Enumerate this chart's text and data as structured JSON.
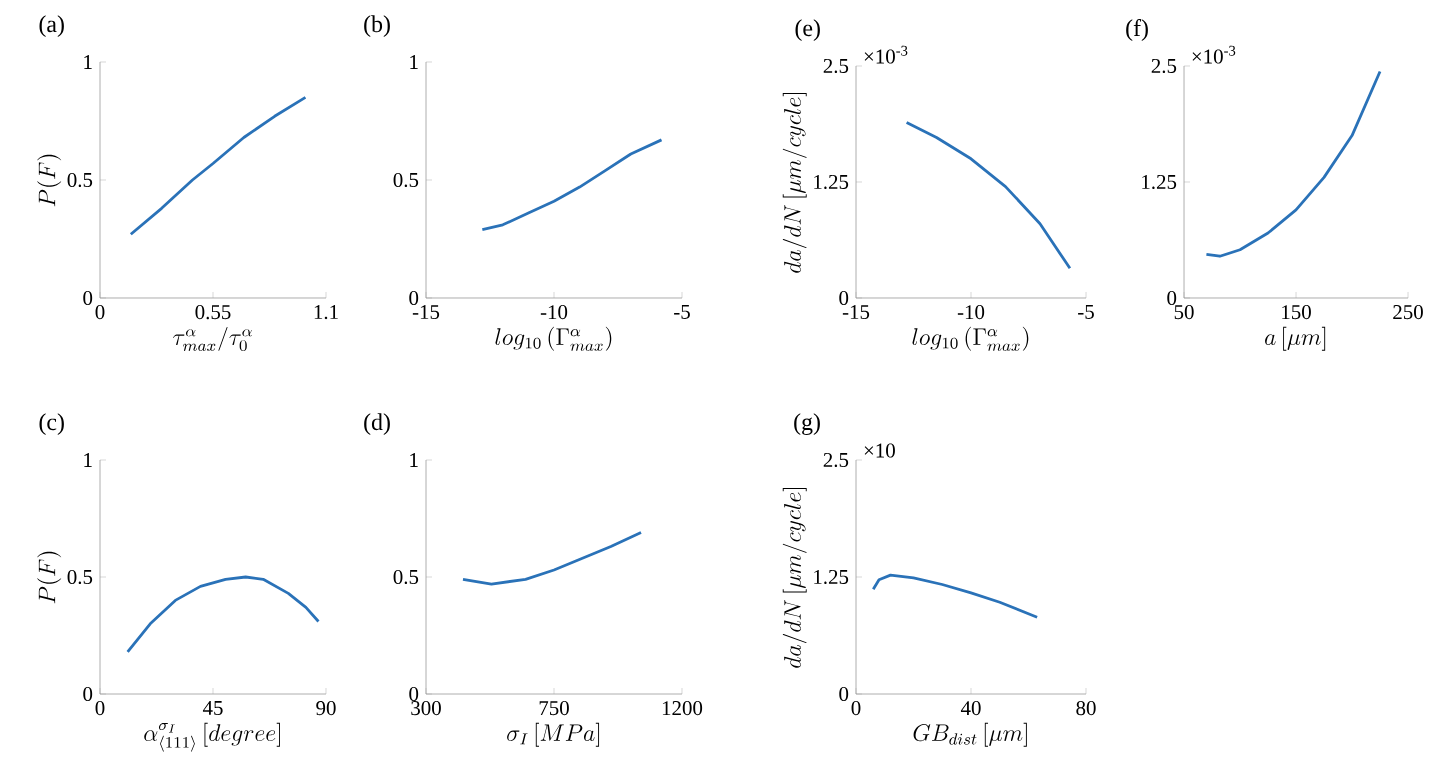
{
  "chart_data": [
    {
      "type": "line",
      "title": "(a)",
      "xlabel": "\\tau^{\\alpha}_{max}/\\tau^{\\alpha}_{0}",
      "ylabel": "P(F)",
      "color": "#2a72b8",
      "x": [
        0.15,
        0.3,
        0.45,
        0.55,
        0.7,
        0.85,
        1.0
      ],
      "values": [
        0.27,
        0.38,
        0.5,
        0.57,
        0.68,
        0.77,
        0.85
      ],
      "xlim": [
        0,
        1.1
      ],
      "ylim": [
        0,
        1
      ],
      "xticks": [
        0,
        0.55,
        1.1
      ],
      "yticks": [
        0,
        0.5,
        1
      ]
    },
    {
      "type": "line",
      "title": "(b)",
      "xlabel": "log_{10}\\left(\\Gamma^{\\alpha}_{max}\\right)",
      "color": "#2a72b8",
      "x": [
        -12.8,
        -12,
        -11,
        -10,
        -9,
        -8,
        -7,
        -5.8
      ],
      "values": [
        0.29,
        0.31,
        0.36,
        0.41,
        0.47,
        0.54,
        0.61,
        0.67
      ],
      "xlim": [
        -15,
        -5
      ],
      "ylim": [
        0,
        1
      ],
      "xticks": [
        -15,
        -10,
        -5
      ],
      "yticks": [
        0,
        0.5,
        1
      ]
    },
    {
      "type": "line",
      "title": "(e)",
      "xlabel": "log_{10}\\left(\\Gamma^{\\alpha}_{max}\\right)",
      "ylabel": "da/dN\\,[\\mu m/cycle]",
      "color": "#2a72b8",
      "x": [
        -12.8,
        -11.5,
        -10,
        -8.5,
        -7,
        -5.7
      ],
      "values": [
        1.89,
        1.73,
        1.5,
        1.2,
        0.8,
        0.32
      ],
      "xlim": [
        -15,
        -5
      ],
      "ylim": [
        0,
        2.5
      ],
      "xticks": [
        -15,
        -10,
        -5
      ],
      "yticks": [
        0,
        1.25,
        2.5
      ],
      "annotations": [
        "×10$^{-3}$"
      ]
    },
    {
      "type": "line",
      "title": "(f)",
      "xlabel": "a\\,[\\mu m]",
      "color": "#2a72b8",
      "x": [
        70,
        82,
        100,
        125,
        150,
        175,
        200,
        225
      ],
      "values": [
        0.47,
        0.45,
        0.52,
        0.7,
        0.95,
        1.3,
        1.75,
        2.44
      ],
      "xlim": [
        50,
        250
      ],
      "ylim": [
        0,
        2.5
      ],
      "xticks": [
        50,
        150,
        250
      ],
      "yticks": [
        0,
        1.25,
        2.5
      ],
      "annotations": [
        "×10$^{-3}$"
      ]
    },
    {
      "type": "line",
      "title": "(c)",
      "xlabel": "\\alpha^{\\sigma_I}_{\\langle 111\\rangle}\\,[degree]",
      "ylabel": "P(F)",
      "color": "#2a72b8",
      "x": [
        11,
        20,
        30,
        40,
        50,
        58,
        65,
        75,
        82,
        87
      ],
      "values": [
        0.18,
        0.3,
        0.4,
        0.46,
        0.49,
        0.5,
        0.49,
        0.43,
        0.37,
        0.31
      ],
      "xlim": [
        0,
        90
      ],
      "ylim": [
        0,
        1
      ],
      "xticks": [
        0,
        45,
        90
      ],
      "yticks": [
        0,
        0.5,
        1
      ]
    },
    {
      "type": "line",
      "title": "(d)",
      "xlabel": "\\sigma_I\\,[MPa]",
      "color": "#2a72b8",
      "x": [
        430,
        530,
        650,
        750,
        850,
        950,
        1056
      ],
      "values": [
        0.49,
        0.47,
        0.49,
        0.53,
        0.58,
        0.63,
        0.69
      ],
      "xlim": [
        300,
        1200
      ],
      "ylim": [
        0,
        1
      ],
      "xticks": [
        300,
        750,
        1200
      ],
      "yticks": [
        0,
        0.5,
        1
      ]
    },
    {
      "type": "line",
      "title": "(g)",
      "xlabel": "GB_{dist}\\,[\\mu m]",
      "ylabel": "da/dN\\,[\\mu m/cycle]",
      "color": "#2a72b8",
      "x": [
        6,
        8,
        12,
        20,
        30,
        40,
        50,
        63
      ],
      "values": [
        1.12,
        1.22,
        1.27,
        1.24,
        1.17,
        1.08,
        0.98,
        0.82
      ],
      "xlim": [
        0,
        80
      ],
      "ylim": [
        0,
        2.5
      ],
      "xticks": [
        0,
        40,
        80
      ],
      "yticks": [
        0,
        1.25,
        2.5
      ],
      "annotations": [
        "×10"
      ]
    }
  ]
}
